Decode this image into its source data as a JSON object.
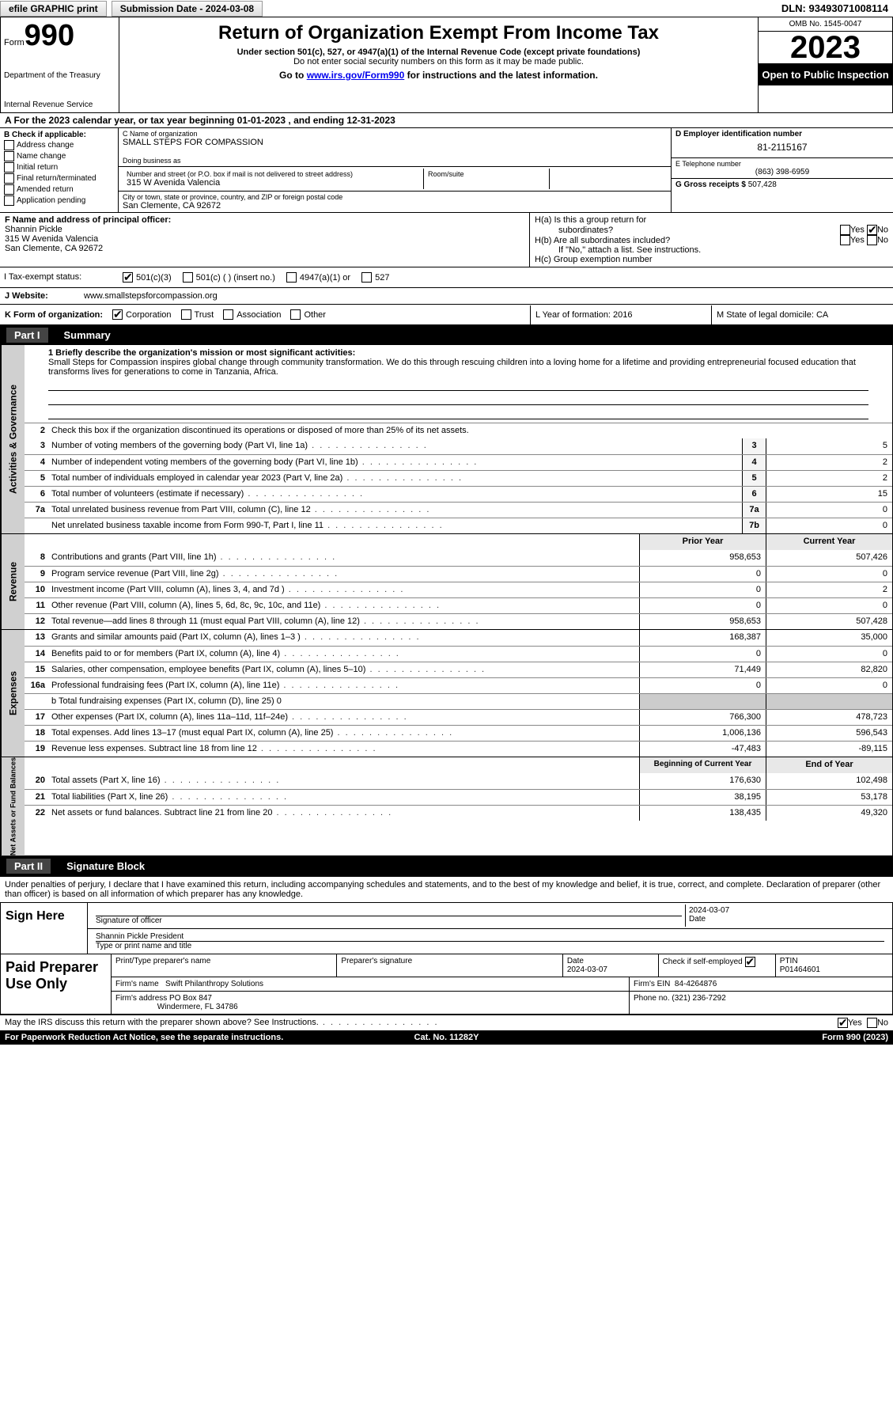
{
  "topbar": {
    "efile": "efile GRAPHIC print",
    "submission": "Submission Date - 2024-03-08",
    "dln": "DLN: 93493071008114"
  },
  "header": {
    "form_prefix": "Form",
    "form_number": "990",
    "dept": "Department of the Treasury",
    "irs": "Internal Revenue Service",
    "title": "Return of Organization Exempt From Income Tax",
    "sub": "Under section 501(c), 527, or 4947(a)(1) of the Internal Revenue Code (except private foundations)",
    "sub2": "Do not enter social security numbers on this form as it may be made public.",
    "goto_pre": "Go to ",
    "goto_link": "www.irs.gov/Form990",
    "goto_post": " for instructions and the latest information.",
    "omb": "OMB No. 1545-0047",
    "year": "2023",
    "open": "Open to Public Inspection"
  },
  "period": {
    "text_a": "A For the 2023 calendar year, or tax year beginning ",
    "begin": "01-01-2023",
    "mid": " , and ending ",
    "end": "12-31-2023"
  },
  "sectionB": {
    "label": "B Check if applicable:",
    "items": [
      "Address change",
      "Name change",
      "Initial return",
      "Final return/terminated",
      "Amended return",
      "Application pending"
    ]
  },
  "sectionC": {
    "name_lbl": "C Name of organization",
    "name": "SMALL STEPS FOR COMPASSION",
    "dba_lbl": "Doing business as",
    "addr_lbl": "Number and street (or P.O. box if mail is not delivered to street address)",
    "room_lbl": "Room/suite",
    "addr": "315 W Avenida Valencia",
    "city_lbl": "City or town, state or province, country, and ZIP or foreign postal code",
    "city": "San Clemente, CA  92672"
  },
  "sectionD": {
    "ein_lbl": "D Employer identification number",
    "ein": "81-2115167",
    "tel_lbl": "E Telephone number",
    "tel": "(863) 398-6959",
    "gross_lbl": "G Gross receipts $",
    "gross": "507,428"
  },
  "officer": {
    "lbl": "F Name and address of principal officer:",
    "name": "Shannin Pickle",
    "addr1": "315 W Avenida Valencia",
    "addr2": "San Clemente, CA  92672"
  },
  "sectionH": {
    "ha_q": "H(a) Is this a group return for",
    "ha_q2": "subordinates?",
    "hb_q": "H(b) Are all subordinates included?",
    "hb_note": "If \"No,\" attach a list. See instructions.",
    "hc": "H(c) Group exemption number",
    "yes": "Yes",
    "no": "No"
  },
  "status": {
    "lbl": "I   Tax-exempt status:",
    "c3": "501(c)(3)",
    "c": "501(c) (  ) (insert no.)",
    "a1": "4947(a)(1) or",
    "527": "527"
  },
  "website": {
    "lbl": "J   Website:",
    "val": "www.smallstepsforcompassion.org"
  },
  "formorg": {
    "lbl": "K Form of organization:",
    "corp": "Corporation",
    "trust": "Trust",
    "assoc": "Association",
    "other": "Other",
    "yof": "L Year of formation: 2016",
    "domicile": "M State of legal domicile: CA"
  },
  "part1": {
    "hdr": "Part I",
    "title": "Summary"
  },
  "mission": {
    "q": "1  Briefly describe the organization's mission or most significant activities:",
    "text": "Small Steps for Compassion inspires global change through community transformation. We do this through rescuing children into a loving home for a lifetime and providing entrepreneurial focused education that transforms lives for generations to come in Tanzania, Africa."
  },
  "line2": "Check this box        if the organization discontinued its operations or disposed of more than 25% of its net assets.",
  "governance": {
    "label": "Activities & Governance",
    "rows": [
      {
        "n": "3",
        "d": "Number of voting members of the governing body (Part VI, line 1a)",
        "box": "3",
        "v": "5"
      },
      {
        "n": "4",
        "d": "Number of independent voting members of the governing body (Part VI, line 1b)",
        "box": "4",
        "v": "2"
      },
      {
        "n": "5",
        "d": "Total number of individuals employed in calendar year 2023 (Part V, line 2a)",
        "box": "5",
        "v": "2"
      },
      {
        "n": "6",
        "d": "Total number of volunteers (estimate if necessary)",
        "box": "6",
        "v": "15"
      },
      {
        "n": "7a",
        "d": "Total unrelated business revenue from Part VIII, column (C), line 12",
        "box": "7a",
        "v": "0"
      },
      {
        "n": "",
        "d": "Net unrelated business taxable income from Form 990-T, Part I, line 11",
        "box": "7b",
        "v": "0"
      }
    ]
  },
  "revenue": {
    "label": "Revenue",
    "hdr_prior": "Prior Year",
    "hdr_curr": "Current Year",
    "rows": [
      {
        "n": "8",
        "d": "Contributions and grants (Part VIII, line 1h)",
        "p": "958,653",
        "c": "507,426"
      },
      {
        "n": "9",
        "d": "Program service revenue (Part VIII, line 2g)",
        "p": "0",
        "c": "0"
      },
      {
        "n": "10",
        "d": "Investment income (Part VIII, column (A), lines 3, 4, and 7d )",
        "p": "0",
        "c": "2"
      },
      {
        "n": "11",
        "d": "Other revenue (Part VIII, column (A), lines 5, 6d, 8c, 9c, 10c, and 11e)",
        "p": "0",
        "c": "0"
      },
      {
        "n": "12",
        "d": "Total revenue—add lines 8 through 11 (must equal Part VIII, column (A), line 12)",
        "p": "958,653",
        "c": "507,428"
      }
    ]
  },
  "expenses": {
    "label": "Expenses",
    "fundraising_sub": "b  Total fundraising expenses (Part IX, column (D), line 25) 0",
    "rows": [
      {
        "n": "13",
        "d": "Grants and similar amounts paid (Part IX, column (A), lines 1–3 )",
        "p": "168,387",
        "c": "35,000"
      },
      {
        "n": "14",
        "d": "Benefits paid to or for members (Part IX, column (A), line 4)",
        "p": "0",
        "c": "0"
      },
      {
        "n": "15",
        "d": "Salaries, other compensation, employee benefits (Part IX, column (A), lines 5–10)",
        "p": "71,449",
        "c": "82,820"
      },
      {
        "n": "16a",
        "d": "Professional fundraising fees (Part IX, column (A), line 11e)",
        "p": "0",
        "c": "0"
      },
      {
        "n": "17",
        "d": "Other expenses (Part IX, column (A), lines 11a–11d, 11f–24e)",
        "p": "766,300",
        "c": "478,723"
      },
      {
        "n": "18",
        "d": "Total expenses. Add lines 13–17 (must equal Part IX, column (A), line 25)",
        "p": "1,006,136",
        "c": "596,543"
      },
      {
        "n": "19",
        "d": "Revenue less expenses. Subtract line 18 from line 12",
        "p": "-47,483",
        "c": "-89,115"
      }
    ]
  },
  "netassets": {
    "label": "Net Assets or Fund Balances",
    "hdr_begin": "Beginning of Current Year",
    "hdr_end": "End of Year",
    "rows": [
      {
        "n": "20",
        "d": "Total assets (Part X, line 16)",
        "p": "176,630",
        "c": "102,498"
      },
      {
        "n": "21",
        "d": "Total liabilities (Part X, line 26)",
        "p": "38,195",
        "c": "53,178"
      },
      {
        "n": "22",
        "d": "Net assets or fund balances. Subtract line 21 from line 20",
        "p": "138,435",
        "c": "49,320"
      }
    ]
  },
  "part2": {
    "hdr": "Part II",
    "title": "Signature Block"
  },
  "penalty": "Under penalties of perjury, I declare that I have examined this return, including accompanying schedules and statements, and to the best of my knowledge and belief, it is true, correct, and complete. Declaration of preparer (other than officer) is based on all information of which preparer has any knowledge.",
  "sign": {
    "here": "Sign Here",
    "sig_lbl": "Signature of officer",
    "date": "2024-03-07",
    "date_lbl": "Date",
    "printed": "Shannin Pickle  President",
    "printed_lbl": "Type or print name and title"
  },
  "prep": {
    "lbl": "Paid Preparer Use Only",
    "name_lbl": "Print/Type preparer's name",
    "sig_lbl": "Preparer's signature",
    "date_lbl": "Date",
    "date": "2024-03-07",
    "self_lbl": "Check        if self-employed",
    "ptin_lbl": "PTIN",
    "ptin": "P01464601",
    "firm_name_lbl": "Firm's name",
    "firm_name": "Swift Philanthropy Solutions",
    "firm_ein_lbl": "Firm's EIN",
    "firm_ein": "84-4264876",
    "firm_addr_lbl": "Firm's address",
    "firm_addr": "PO Box 847",
    "firm_city": "Windermere, FL  34786",
    "phone_lbl": "Phone no.",
    "phone": "(321) 236-7292"
  },
  "discuss": {
    "q": "May the IRS discuss this return with the preparer shown above? See Instructions.",
    "yes": "Yes",
    "no": "No"
  },
  "footer": {
    "pra": "For Paperwork Reduction Act Notice, see the separate instructions.",
    "cat": "Cat. No. 11282Y",
    "form": "Form 990 (2023)"
  },
  "colors": {
    "bg": "#ffffff",
    "black": "#000000",
    "grey_side": "#d0d0d0",
    "grey_hdr": "#e8e8e8",
    "grey_shade": "#cccccc",
    "link": "#0000ee"
  }
}
